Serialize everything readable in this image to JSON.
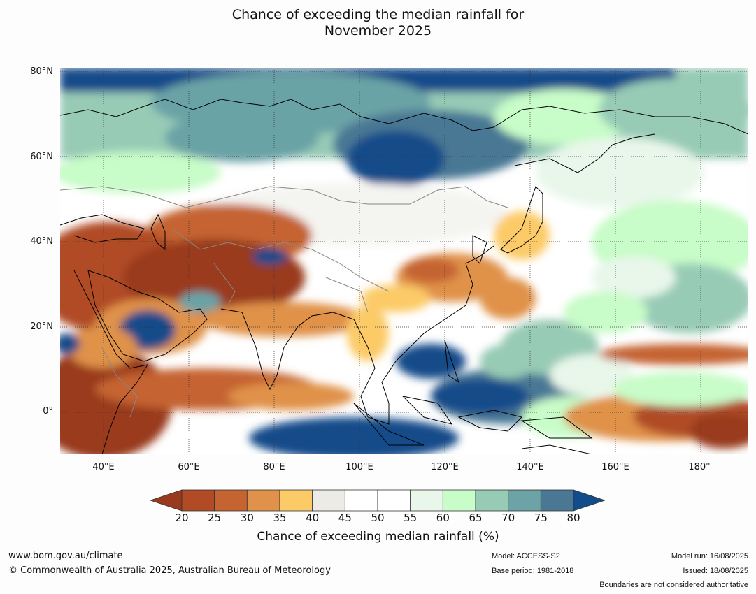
{
  "title_line1": "Chance of exceeding the median rainfall for",
  "title_line2": "November 2025",
  "lat_labels": [
    "80°N",
    "60°N",
    "40°N",
    "20°N",
    "0°"
  ],
  "lon_labels": [
    "40°E",
    "60°E",
    "80°E",
    "100°E",
    "120°E",
    "140°E",
    "160°E",
    "180°"
  ],
  "colorbar": {
    "ticks": [
      "20",
      "25",
      "30",
      "35",
      "40",
      "45",
      "50",
      "55",
      "60",
      "65",
      "70",
      "75",
      "80"
    ],
    "colors": [
      "#993a1e",
      "#b04b26",
      "#c56430",
      "#e0924a",
      "#fccb68",
      "#ecebe6",
      "#ffffff",
      "#ffffff",
      "#e8f7ea",
      "#c8fcc8",
      "#98cbb6",
      "#6ba3a6",
      "#4a7894",
      "#124c8a"
    ],
    "label": "Chance of exceeding median rainfall (%)"
  },
  "footer": {
    "url": "www.bom.gov.au/climate",
    "copyright": "© Commonwealth of Australia 2025, Australian Bureau of Meteorology",
    "model": "Model: ACCESS-S2",
    "base_period": "Base period: 1981-2018",
    "model_run": "Model run: 16/08/2025",
    "issued": "Issued: 18/08/2025",
    "disclaimer": "Boundaries are not considered authoritative"
  }
}
